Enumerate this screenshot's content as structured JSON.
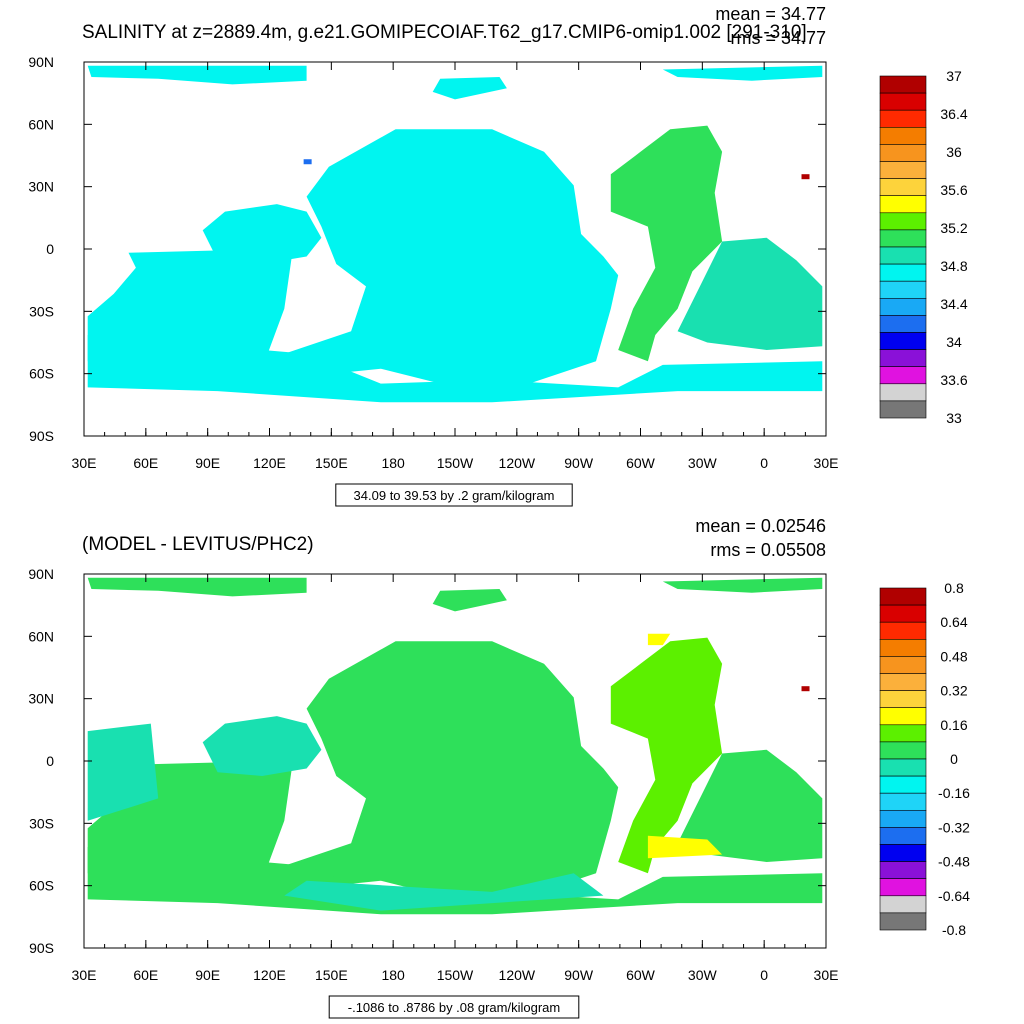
{
  "chart_data": [
    {
      "type": "heatmap",
      "title": "SALINITY at z=2889.4m, g.e21.GOMIPECOIAF.T62_g17.CMIP6-omip1.002 [291-310]",
      "stats": {
        "mean": "mean = 34.77",
        "rms": "rms = 34.77"
      },
      "xlabel": "",
      "ylabel": "",
      "x_ticks": [
        "30E",
        "60E",
        "90E",
        "120E",
        "150E",
        "180",
        "150W",
        "120W",
        "90W",
        "60W",
        "30W",
        "0",
        "30E"
      ],
      "y_ticks": [
        "90N",
        "60N",
        "30N",
        "0",
        "30S",
        "60S",
        "90S"
      ],
      "colorbar": {
        "labels": [
          "37",
          "36.4",
          "36",
          "35.6",
          "35.2",
          "34.8",
          "34.4",
          "34",
          "33.6",
          "33"
        ],
        "colors": [
          "#b00000",
          "#d90000",
          "#ff2a00",
          "#f47d00",
          "#f7941e",
          "#fbb03b",
          "#fdd33b",
          "#ffff00",
          "#5cf000",
          "#2ee05a",
          "#19e0b0",
          "#00f5f0",
          "#1fd4f7",
          "#19a9f5",
          "#1c6ef0",
          "#0000f0",
          "#8a11d8",
          "#e012e0",
          "#d3d3d3",
          "#777777"
        ]
      },
      "range_label": "34.09 to 39.53 by .2 gram/kilogram"
    },
    {
      "type": "heatmap",
      "title": "(MODEL - LEVITUS/PHC2)",
      "stats": {
        "mean": "mean = 0.02546",
        "rms": "rms = 0.05508"
      },
      "xlabel": "",
      "ylabel": "",
      "x_ticks": [
        "30E",
        "60E",
        "90E",
        "120E",
        "150E",
        "180",
        "150W",
        "120W",
        "90W",
        "60W",
        "30W",
        "0",
        "30E"
      ],
      "y_ticks": [
        "90N",
        "60N",
        "30N",
        "0",
        "30S",
        "60S",
        "90S"
      ],
      "colorbar": {
        "labels": [
          "0.8",
          "0.64",
          "0.48",
          "0.32",
          "0.16",
          "0",
          "-0.16",
          "-0.32",
          "-0.48",
          "-0.64",
          "-0.8"
        ],
        "colors": [
          "#b00000",
          "#d90000",
          "#ff2a00",
          "#f47d00",
          "#f7941e",
          "#fbb03b",
          "#fdd33b",
          "#ffff00",
          "#5cf000",
          "#2ee05a",
          "#19e0b0",
          "#00f5f0",
          "#1fd4f7",
          "#19a9f5",
          "#1c6ef0",
          "#0000f0",
          "#8a11d8",
          "#e012e0",
          "#d3d3d3",
          "#777777"
        ]
      },
      "range_label": "-.1086 to .8786 by .08 gram/kilogram"
    }
  ],
  "colors": {
    "upper_fill": "#00f5f0",
    "upper_atlantic": "#2ee05a",
    "upper_south_atlantic": "#19e0b0",
    "lower_fill": "#2ee05a",
    "lower_atlantic": "#5cf000",
    "lower_cyan": "#19e0b0",
    "lower_yellow": "#ffff00",
    "dark_red": "#b00000"
  }
}
